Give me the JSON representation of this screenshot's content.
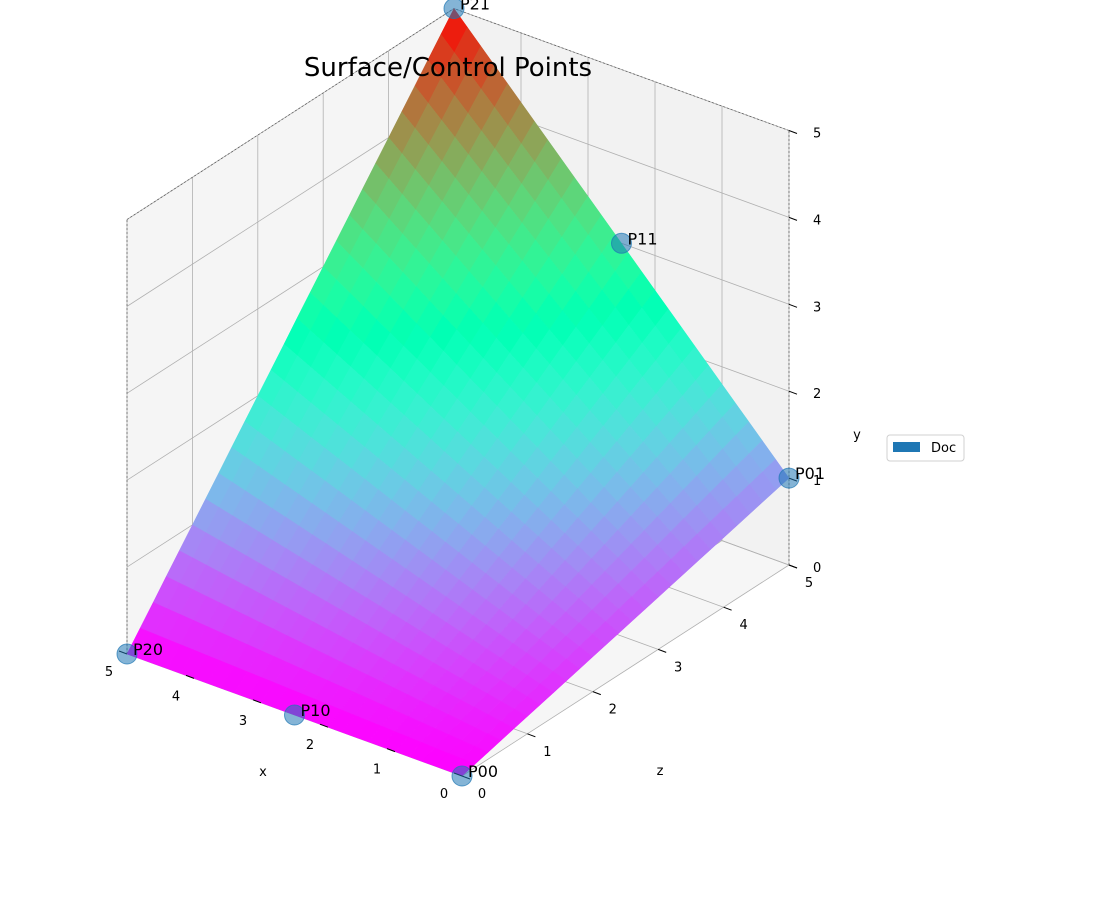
{
  "chart_data": {
    "type": "surface",
    "title": "Surface/Control Points",
    "xlabel": "x",
    "ylabel": "y",
    "zlabel": "z",
    "xlim": [
      0,
      5
    ],
    "ylim": [
      0,
      5
    ],
    "zlim": [
      0,
      5
    ],
    "x_ticks": [
      "0",
      "1",
      "2",
      "3",
      "4",
      "5"
    ],
    "y_ticks": [
      "0",
      "1",
      "2",
      "3",
      "4",
      "5"
    ],
    "z_ticks": [
      "0",
      "1",
      "2",
      "3",
      "4",
      "5"
    ],
    "grid": true,
    "colormap": "rainbow",
    "surface": {
      "name": "Doc",
      "color": "#1f77b4",
      "corners": [
        {
          "x": 0,
          "z": 0,
          "y": 0
        },
        {
          "x": 5,
          "z": 0,
          "y": 0
        },
        {
          "x": 0,
          "z": 5,
          "y": 1
        },
        {
          "x": 5,
          "z": 5,
          "y": 5
        }
      ]
    },
    "control_points": [
      {
        "label": "P00",
        "x": 0,
        "z": 0,
        "y": 0
      },
      {
        "label": "P10",
        "x": 2.5,
        "z": 0,
        "y": 0
      },
      {
        "label": "P20",
        "x": 5,
        "z": 0,
        "y": 0
      },
      {
        "label": "P01",
        "x": 0,
        "z": 5,
        "y": 1
      },
      {
        "label": "P11",
        "x": 2.5,
        "z": 5,
        "y": 3
      },
      {
        "label": "P21",
        "x": 5,
        "z": 5,
        "y": 5
      }
    ],
    "legend": {
      "entries": [
        "Doc"
      ],
      "placement": "right"
    }
  }
}
